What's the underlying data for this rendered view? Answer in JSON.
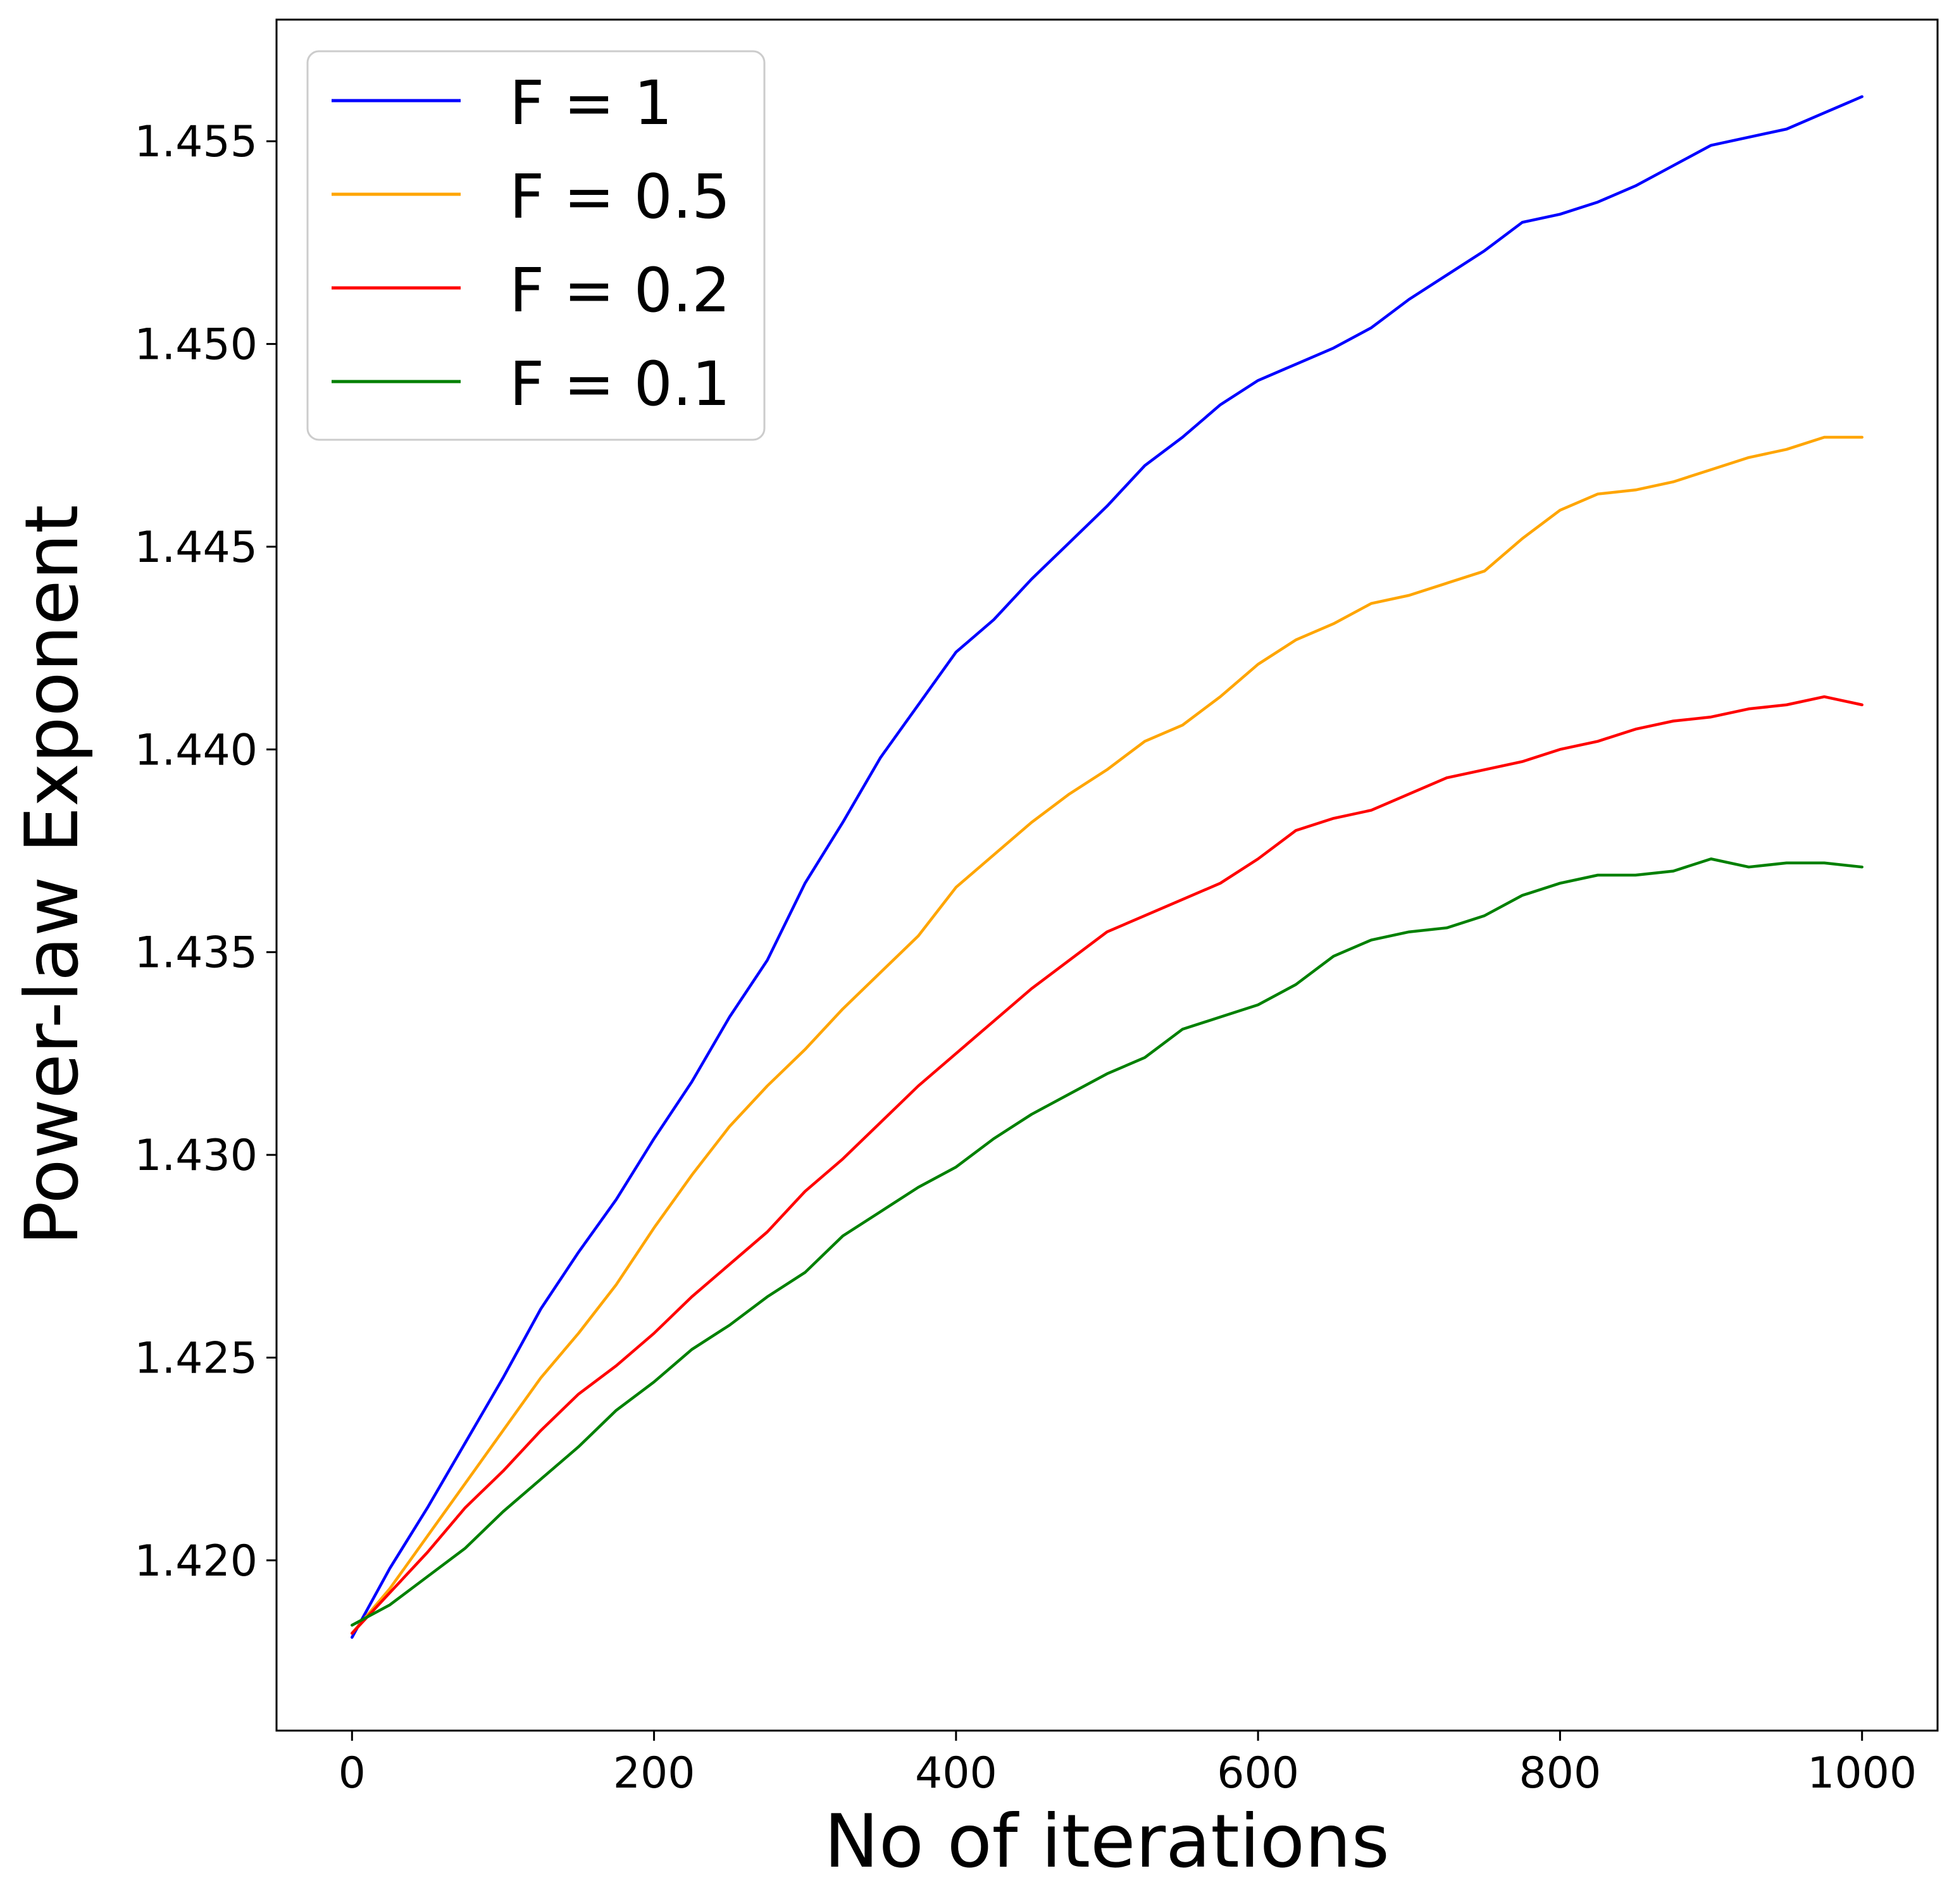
{
  "chart_data": {
    "type": "line",
    "title": "",
    "xlabel": "No of iterations",
    "ylabel": "Power-law Exponent",
    "xlim": [
      -50,
      1050
    ],
    "ylim": [
      1.4158,
      1.458
    ],
    "xticks": [
      0,
      200,
      400,
      600,
      800,
      1000
    ],
    "xtick_labels": [
      "0",
      "200",
      "400",
      "600",
      "800",
      "1000"
    ],
    "yticks": [
      1.42,
      1.425,
      1.43,
      1.435,
      1.44,
      1.445,
      1.45,
      1.455
    ],
    "ytick_labels": [
      "1.420",
      "1.425",
      "1.430",
      "1.435",
      "1.440",
      "1.445",
      "1.450",
      "1.455"
    ],
    "grid": false,
    "legend_position": "top-left",
    "series": [
      {
        "name": "F = 1",
        "color": "#0000ff",
        "x": [
          0,
          25,
          50,
          75,
          100,
          125,
          150,
          175,
          200,
          225,
          250,
          275,
          300,
          325,
          350,
          375,
          400,
          425,
          450,
          475,
          500,
          525,
          550,
          575,
          600,
          625,
          650,
          675,
          700,
          725,
          750,
          775,
          800,
          825,
          850,
          875,
          900,
          925,
          950,
          975,
          1000
        ],
        "y": [
          1.4181,
          1.4198,
          1.4213,
          1.4229,
          1.4245,
          1.4262,
          1.4276,
          1.4289,
          1.4304,
          1.4318,
          1.4334,
          1.4348,
          1.4367,
          1.4382,
          1.4398,
          1.4411,
          1.4424,
          1.4432,
          1.4442,
          1.4451,
          1.446,
          1.447,
          1.4477,
          1.4485,
          1.4491,
          1.4495,
          1.4499,
          1.4504,
          1.4511,
          1.4517,
          1.4523,
          1.453,
          1.4532,
          1.4535,
          1.4539,
          1.4544,
          1.4549,
          1.4551,
          1.4553,
          1.4557,
          1.4561
        ]
      },
      {
        "name": "F = 0.5",
        "color": "#ffa500",
        "x": [
          0,
          25,
          50,
          75,
          100,
          125,
          150,
          175,
          200,
          225,
          250,
          275,
          300,
          325,
          350,
          375,
          400,
          425,
          450,
          475,
          500,
          525,
          550,
          575,
          600,
          625,
          650,
          675,
          700,
          725,
          750,
          775,
          800,
          825,
          850,
          875,
          900,
          925,
          950,
          975,
          1000
        ],
        "y": [
          1.4182,
          1.4193,
          1.4206,
          1.4219,
          1.4232,
          1.4245,
          1.4256,
          1.4268,
          1.4282,
          1.4295,
          1.4307,
          1.4317,
          1.4326,
          1.4336,
          1.4345,
          1.4354,
          1.4366,
          1.4374,
          1.4382,
          1.4389,
          1.4395,
          1.4402,
          1.4406,
          1.4413,
          1.4421,
          1.4427,
          1.4431,
          1.4436,
          1.4438,
          1.4441,
          1.4444,
          1.4452,
          1.4459,
          1.4463,
          1.4464,
          1.4466,
          1.4469,
          1.4472,
          1.4474,
          1.4477,
          1.4477
        ]
      },
      {
        "name": "F = 0.2",
        "color": "#ff0000",
        "x": [
          0,
          25,
          50,
          75,
          100,
          125,
          150,
          175,
          200,
          225,
          250,
          275,
          300,
          325,
          350,
          375,
          400,
          425,
          450,
          475,
          500,
          525,
          550,
          575,
          600,
          625,
          650,
          675,
          700,
          725,
          750,
          775,
          800,
          825,
          850,
          875,
          900,
          925,
          950,
          975,
          1000
        ],
        "y": [
          1.4182,
          1.4192,
          1.4202,
          1.4213,
          1.4222,
          1.4232,
          1.4241,
          1.4248,
          1.4256,
          1.4265,
          1.4273,
          1.4281,
          1.4291,
          1.4299,
          1.4308,
          1.4317,
          1.4325,
          1.4333,
          1.4341,
          1.4348,
          1.4355,
          1.4359,
          1.4363,
          1.4367,
          1.4373,
          1.438,
          1.4383,
          1.4385,
          1.4389,
          1.4393,
          1.4395,
          1.4397,
          1.44,
          1.4402,
          1.4405,
          1.4407,
          1.4408,
          1.441,
          1.4411,
          1.4413,
          1.4411
        ]
      },
      {
        "name": "F = 0.1",
        "color": "#008000",
        "x": [
          0,
          25,
          50,
          75,
          100,
          125,
          150,
          175,
          200,
          225,
          250,
          275,
          300,
          325,
          350,
          375,
          400,
          425,
          450,
          475,
          500,
          525,
          550,
          575,
          600,
          625,
          650,
          675,
          700,
          725,
          750,
          775,
          800,
          825,
          850,
          875,
          900,
          925,
          950,
          975,
          1000
        ],
        "y": [
          1.4184,
          1.4189,
          1.4196,
          1.4203,
          1.4212,
          1.422,
          1.4228,
          1.4237,
          1.4244,
          1.4252,
          1.4258,
          1.4265,
          1.4271,
          1.428,
          1.4286,
          1.4292,
          1.4297,
          1.4304,
          1.431,
          1.4315,
          1.432,
          1.4324,
          1.4331,
          1.4334,
          1.4337,
          1.4342,
          1.4349,
          1.4353,
          1.4355,
          1.4356,
          1.4359,
          1.4364,
          1.4367,
          1.4369,
          1.4369,
          1.437,
          1.4373,
          1.4371,
          1.4372,
          1.4372,
          1.4371
        ]
      }
    ]
  }
}
